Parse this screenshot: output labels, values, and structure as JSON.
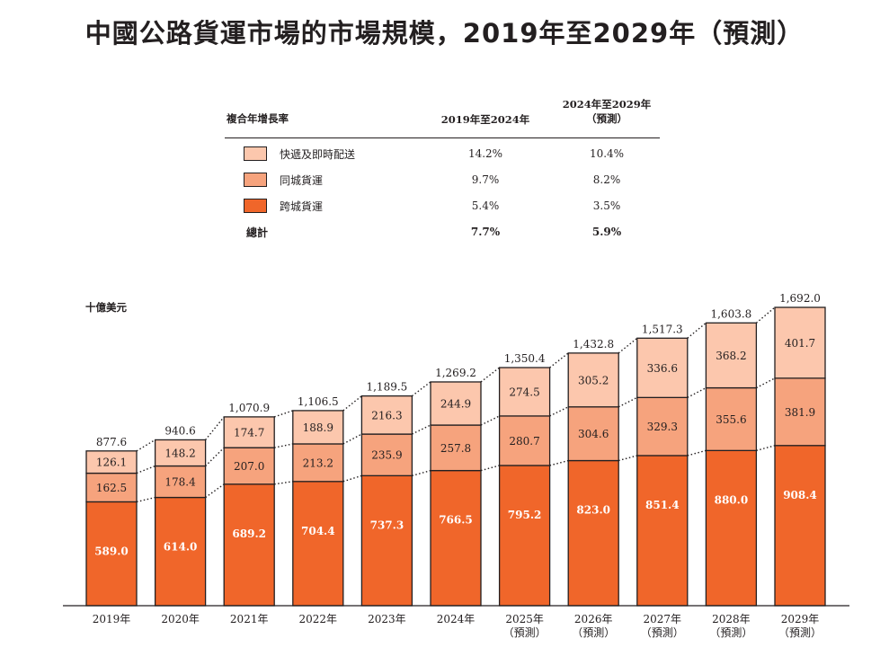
{
  "title": "中國公路貨運市場的市場規模，2019年至2029年（預測）",
  "colors": {
    "cross_city": "#f0662a",
    "intra_city": "#f6a37d",
    "express": "#fcc7ad",
    "text": "#231f20"
  },
  "cagr_table": {
    "header_label": "複合年增長率",
    "col1": "2019年至2024年",
    "col2_line1": "2024年至2029年",
    "col2_line2": "（預測）",
    "rows": [
      {
        "label": "快遞及即時配送",
        "v1": "14.2%",
        "v2": "10.4%"
      },
      {
        "label": "同城貨運",
        "v1": "9.7%",
        "v2": "8.2%"
      },
      {
        "label": "跨城貨運",
        "v1": "5.4%",
        "v2": "3.5%"
      }
    ],
    "total": {
      "label": "總計",
      "v1": "7.7%",
      "v2": "5.9%"
    }
  },
  "chart_data": {
    "type": "bar",
    "stacked": true,
    "unit": "十億美元",
    "categories": [
      "2019年",
      "2020年",
      "2021年",
      "2022年",
      "2023年",
      "2024年",
      "2025年",
      "2026年",
      "2027年",
      "2028年",
      "2029年"
    ],
    "forecast_note": "（預測）",
    "forecast_from_index": 6,
    "series": [
      {
        "name": "跨城貨運",
        "values": [
          589.0,
          614.0,
          689.2,
          704.4,
          737.3,
          766.5,
          795.2,
          823.0,
          851.4,
          880.0,
          908.4
        ]
      },
      {
        "name": "同城貨運",
        "values": [
          162.5,
          178.4,
          207.0,
          213.2,
          235.9,
          257.8,
          280.7,
          304.6,
          329.3,
          355.6,
          381.9
        ]
      },
      {
        "name": "快遞及即時配送",
        "values": [
          126.1,
          148.2,
          174.7,
          188.9,
          216.3,
          244.9,
          274.5,
          305.2,
          336.6,
          368.2,
          401.7
        ]
      }
    ],
    "value_labels": [
      [
        "589.0",
        "614.0",
        "689.2",
        "704.4",
        "737.3",
        "766.5",
        "795.2",
        "823.0",
        "851.4",
        "880.0",
        "908.4"
      ],
      [
        "162.5",
        "178.4",
        "207.0",
        "213.2",
        "235.9",
        "257.8",
        "280.7",
        "304.6",
        "329.3",
        "355.6",
        "381.9"
      ],
      [
        "126.1",
        "148.2",
        "174.7",
        "188.9",
        "216.3",
        "244.9",
        "274.5",
        "305.2",
        "336.6",
        "368.2",
        "401.7"
      ]
    ],
    "totals": [
      877.6,
      940.6,
      1070.9,
      1106.5,
      1189.5,
      1269.2,
      1350.4,
      1432.8,
      1517.3,
      1603.8,
      1692.0
    ],
    "total_labels": [
      "877.6",
      "940.6",
      "1,070.9",
      "1,106.5",
      "1,189.5",
      "1,269.2",
      "1,350.4",
      "1,432.8",
      "1,517.3",
      "1,603.8",
      "1,692.0"
    ],
    "ylim": [
      0,
      1800
    ],
    "grid": false,
    "legend": "top"
  }
}
